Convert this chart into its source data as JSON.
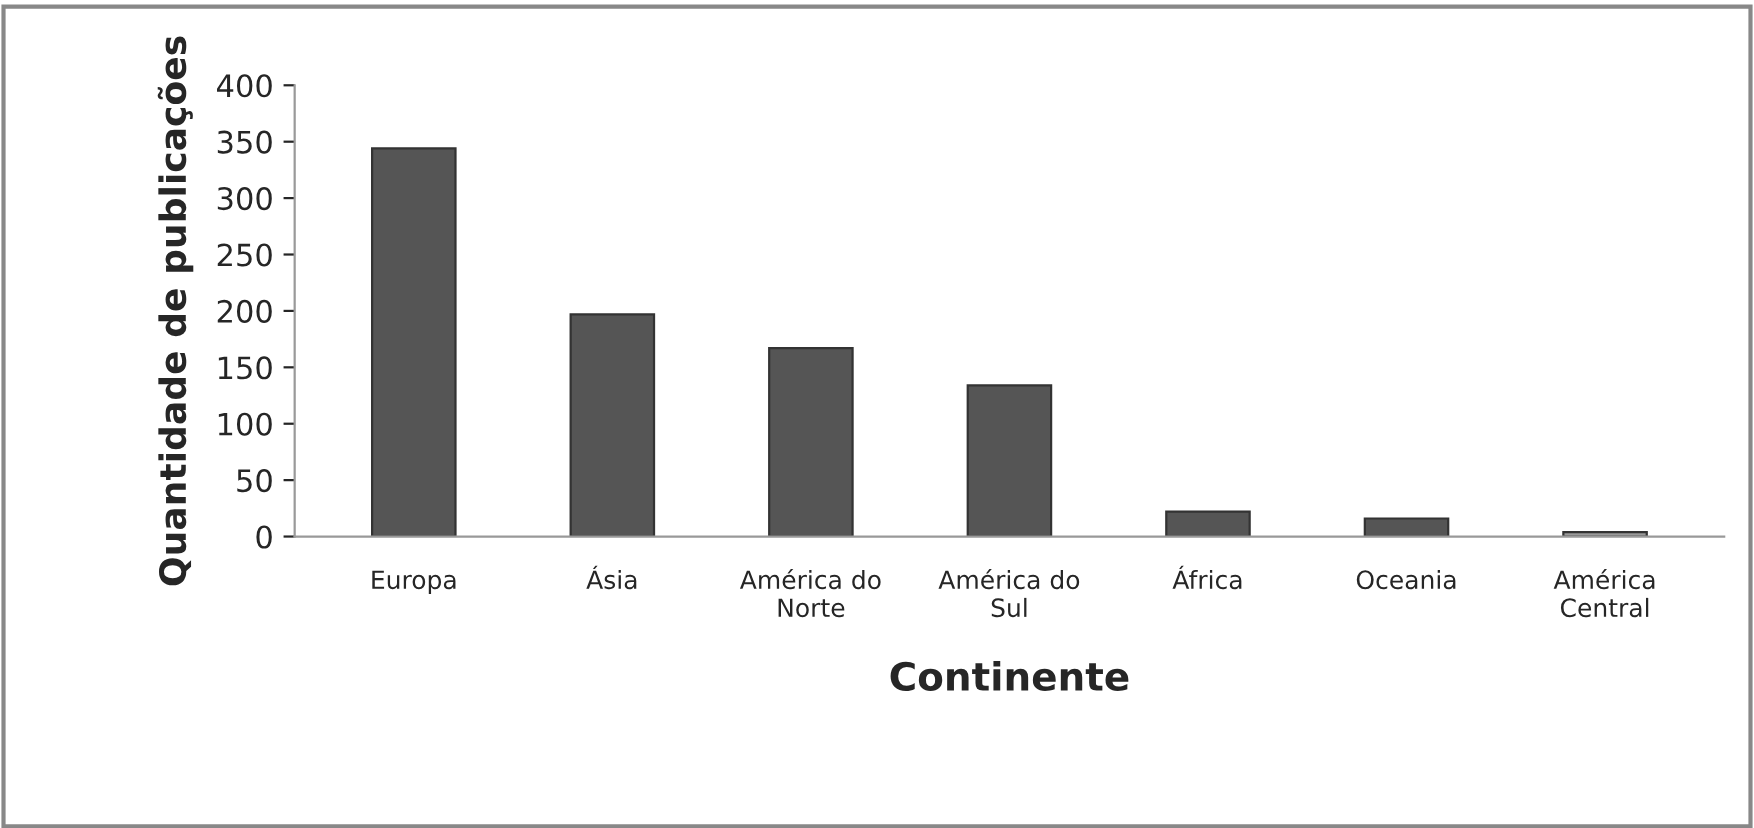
{
  "chart_data": {
    "type": "bar",
    "xlabel": "Continente",
    "ylabel": "Quantidade de publicações",
    "categories": [
      "Europa",
      "Ásia",
      "América do\nNorte",
      "América do\nSul",
      "África",
      "Oceania",
      "América\nCentral"
    ],
    "values": [
      344,
      197,
      167,
      134,
      22,
      16,
      4
    ],
    "colors": [
      "#555555",
      "#555555",
      "#555555",
      "#555555",
      "#555555",
      "#555555",
      "#9a9a9a"
    ],
    "ylim": [
      0,
      400
    ],
    "yticks": [
      0,
      50,
      100,
      150,
      200,
      250,
      300,
      350,
      400
    ],
    "grid": false,
    "legend": false
  }
}
